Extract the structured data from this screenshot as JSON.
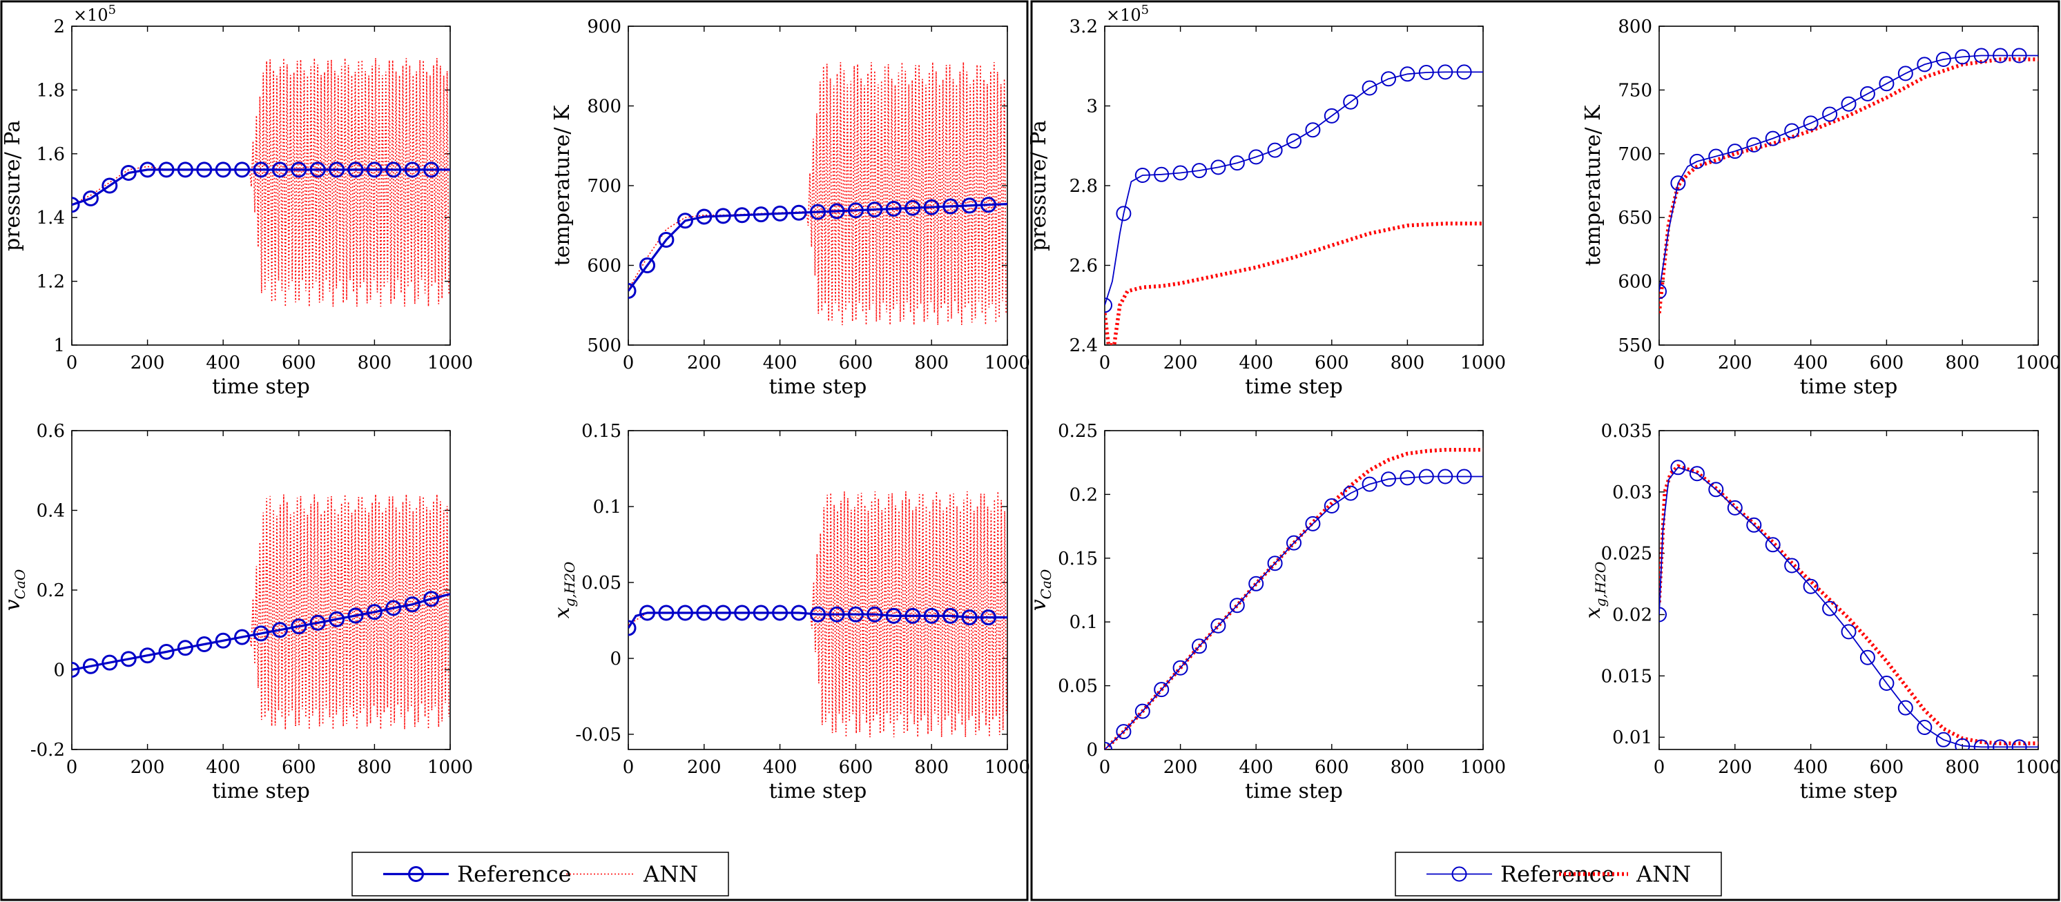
{
  "colors": {
    "reference": "#0000c8",
    "ann": "#ff0000",
    "frame": "#000000",
    "background": "#ffffff"
  },
  "legends": [
    {
      "reference_label": "Reference",
      "ann_label": "ANN",
      "reference_style": "thick",
      "ann_style": "thin-dotted"
    },
    {
      "reference_label": "Reference",
      "ann_label": "ANN",
      "reference_style": "thin",
      "ann_style": "thick-dotted"
    }
  ],
  "chart_data": [
    {
      "type": "line",
      "xlabel": "time step",
      "ylabel": "pressure/ Pa",
      "ylabel_kind": "text",
      "exponent_label": "×10^5",
      "xlim": [
        0,
        1000
      ],
      "ylim": [
        1,
        2
      ],
      "xticks": [
        0,
        200,
        400,
        600,
        800,
        1000
      ],
      "yticks": [
        1,
        1.2,
        1.4,
        1.6,
        1.8,
        2
      ],
      "ytick_labels": [
        "1",
        "1.2",
        "1.4",
        "1.6",
        "1.8",
        "2"
      ],
      "series": [
        {
          "name": "Reference",
          "style": "thick",
          "x": [
            0,
            50,
            100,
            150,
            200,
            250,
            300,
            350,
            400,
            450,
            500,
            550,
            600,
            650,
            700,
            750,
            800,
            850,
            900,
            950,
            1000
          ],
          "y": [
            1.44,
            1.46,
            1.5,
            1.54,
            1.55,
            1.55,
            1.55,
            1.55,
            1.55,
            1.55,
            1.55,
            1.55,
            1.55,
            1.55,
            1.55,
            1.55,
            1.55,
            1.55,
            1.55,
            1.55,
            1.55
          ]
        },
        {
          "name": "ANN",
          "style": "thin-dotted",
          "trend": "follows reference until ~450 then oscillates",
          "x": [
            0,
            50,
            100,
            150,
            200,
            250,
            300,
            350,
            400,
            450,
            1000
          ],
          "y": [
            1.44,
            1.47,
            1.51,
            1.55,
            1.56,
            1.55,
            1.55,
            1.55,
            1.55,
            1.55,
            1.55
          ],
          "oscillation": {
            "start": 470,
            "low": 1.12,
            "high": 1.9
          }
        }
      ]
    },
    {
      "type": "line",
      "xlabel": "time step",
      "ylabel": "temperature/ K",
      "ylabel_kind": "text",
      "xlim": [
        0,
        1000
      ],
      "ylim": [
        500,
        900
      ],
      "xticks": [
        0,
        200,
        400,
        600,
        800,
        1000
      ],
      "yticks": [
        500,
        600,
        700,
        800,
        900
      ],
      "ytick_labels": [
        "500",
        "600",
        "700",
        "800",
        "900"
      ],
      "series": [
        {
          "name": "Reference",
          "style": "thick",
          "x": [
            0,
            50,
            100,
            150,
            200,
            250,
            300,
            350,
            400,
            450,
            500,
            550,
            600,
            650,
            700,
            750,
            800,
            850,
            900,
            950,
            1000
          ],
          "y": [
            568,
            600,
            632,
            656,
            661,
            662,
            663,
            664,
            665,
            666,
            667,
            668,
            669,
            670,
            671,
            672,
            673,
            674,
            675,
            676,
            677
          ]
        },
        {
          "name": "ANN",
          "style": "thin-dotted",
          "trend": "follows reference until ~460 then oscillates",
          "x": [
            0,
            50,
            100,
            150,
            200,
            250,
            300,
            350,
            400,
            450,
            1000
          ],
          "y": [
            570,
            610,
            645,
            660,
            663,
            663,
            664,
            665,
            666,
            667,
            677
          ],
          "oscillation": {
            "start": 470,
            "low": 525,
            "high": 855
          }
        }
      ]
    },
    {
      "type": "line",
      "xlabel": "time step",
      "ylabel": "v_CaO",
      "ylabel_kind": "math",
      "ylabel_base": "v",
      "ylabel_sub": "CaO",
      "xlim": [
        0,
        1000
      ],
      "ylim": [
        -0.2,
        0.6
      ],
      "xticks": [
        0,
        200,
        400,
        600,
        800,
        1000
      ],
      "yticks": [
        -0.2,
        0,
        0.2,
        0.4,
        0.6
      ],
      "ytick_labels": [
        "-0.2",
        "0",
        "0.2",
        "0.4",
        "0.6"
      ],
      "series": [
        {
          "name": "Reference",
          "style": "thick",
          "x": [
            0,
            50,
            100,
            150,
            200,
            250,
            300,
            350,
            400,
            450,
            500,
            550,
            600,
            650,
            700,
            750,
            800,
            850,
            900,
            950,
            1000
          ],
          "y": [
            0,
            0.009,
            0.018,
            0.027,
            0.036,
            0.045,
            0.055,
            0.064,
            0.073,
            0.082,
            0.091,
            0.1,
            0.109,
            0.118,
            0.127,
            0.136,
            0.145,
            0.155,
            0.164,
            0.178,
            0.19
          ]
        },
        {
          "name": "ANN",
          "style": "thin-dotted",
          "trend": "follows reference until ~460 then oscillates",
          "x": [
            0,
            100,
            200,
            300,
            400,
            450,
            1000
          ],
          "y": [
            0,
            0.018,
            0.036,
            0.055,
            0.073,
            0.082,
            0.19
          ],
          "oscillation": {
            "start": 470,
            "low": -0.15,
            "high": 0.44
          }
        }
      ]
    },
    {
      "type": "line",
      "xlabel": "time step",
      "ylabel": "x_g,H2O",
      "ylabel_kind": "math",
      "ylabel_base": "x",
      "ylabel_sub": "g,H2O",
      "xlim": [
        0,
        1000
      ],
      "ylim": [
        -0.06,
        0.15
      ],
      "xticks": [
        0,
        200,
        400,
        600,
        800,
        1000
      ],
      "yticks": [
        -0.05,
        0,
        0.05,
        0.1,
        0.15
      ],
      "ytick_labels": [
        "-0.05",
        "0",
        "0.05",
        "0.1",
        "0.15"
      ],
      "series": [
        {
          "name": "Reference",
          "style": "thick",
          "x": [
            0,
            20,
            50,
            100,
            150,
            200,
            250,
            300,
            350,
            400,
            450,
            500,
            550,
            600,
            650,
            700,
            750,
            800,
            850,
            900,
            950,
            1000
          ],
          "y": [
            0.02,
            0.028,
            0.03,
            0.03,
            0.03,
            0.03,
            0.03,
            0.03,
            0.03,
            0.03,
            0.03,
            0.029,
            0.029,
            0.029,
            0.029,
            0.028,
            0.028,
            0.028,
            0.028,
            0.027,
            0.027,
            0.027
          ]
        },
        {
          "name": "ANN",
          "style": "thin-dotted",
          "trend": "follows reference until ~470 then oscillates",
          "x": [
            0,
            50,
            100,
            200,
            300,
            400,
            450,
            1000
          ],
          "y": [
            0.022,
            0.03,
            0.03,
            0.03,
            0.03,
            0.03,
            0.03,
            0.027
          ],
          "oscillation": {
            "start": 480,
            "low": -0.052,
            "high": 0.11
          }
        }
      ]
    },
    {
      "type": "line",
      "xlabel": "time step",
      "ylabel": "pressure/ Pa",
      "ylabel_kind": "text",
      "exponent_label": "×10^5",
      "xlim": [
        0,
        1000
      ],
      "ylim": [
        2.4,
        3.2
      ],
      "xticks": [
        0,
        200,
        400,
        600,
        800,
        1000
      ],
      "yticks": [
        2.4,
        2.6,
        2.8,
        3,
        3.2
      ],
      "ytick_labels": [
        "2.4",
        "2.6",
        "2.8",
        "3",
        "3.2"
      ],
      "series": [
        {
          "name": "Reference",
          "style": "thin",
          "x": [
            0,
            20,
            40,
            50,
            70,
            100,
            150,
            200,
            250,
            300,
            350,
            400,
            450,
            500,
            550,
            600,
            650,
            700,
            750,
            800,
            850,
            900,
            950,
            1000
          ],
          "y": [
            2.5,
            2.56,
            2.68,
            2.73,
            2.81,
            2.826,
            2.828,
            2.832,
            2.838,
            2.846,
            2.857,
            2.872,
            2.889,
            2.912,
            2.94,
            2.975,
            3.01,
            3.045,
            3.068,
            3.08,
            3.084,
            3.085,
            3.085,
            3.085
          ]
        },
        {
          "name": "ANN",
          "style": "thick-dotted",
          "x": [
            0,
            10,
            25,
            40,
            60,
            100,
            150,
            200,
            300,
            400,
            500,
            600,
            700,
            800,
            900,
            1000
          ],
          "y": [
            2.48,
            2.4,
            2.4,
            2.5,
            2.535,
            2.545,
            2.548,
            2.555,
            2.575,
            2.595,
            2.62,
            2.65,
            2.68,
            2.7,
            2.705,
            2.705
          ]
        }
      ]
    },
    {
      "type": "line",
      "xlabel": "time step",
      "ylabel": "temperature/ K",
      "ylabel_kind": "text",
      "xlim": [
        0,
        1000
      ],
      "ylim": [
        550,
        800
      ],
      "xticks": [
        0,
        200,
        400,
        600,
        800,
        1000
      ],
      "yticks": [
        550,
        600,
        650,
        700,
        750,
        800
      ],
      "ytick_labels": [
        "550",
        "600",
        "650",
        "700",
        "750",
        "800"
      ],
      "series": [
        {
          "name": "Reference",
          "style": "thin",
          "x": [
            0,
            25,
            50,
            75,
            100,
            150,
            200,
            250,
            300,
            350,
            400,
            450,
            500,
            550,
            600,
            650,
            700,
            750,
            800,
            850,
            900,
            950,
            1000
          ],
          "y": [
            592,
            640,
            677,
            690,
            694,
            698,
            702,
            707,
            712,
            718,
            724,
            731,
            739,
            747,
            755,
            763,
            770,
            774,
            776,
            777,
            777,
            777,
            777
          ]
        },
        {
          "name": "ANN",
          "style": "thick-dotted",
          "x": [
            0,
            25,
            50,
            75,
            100,
            200,
            300,
            400,
            500,
            600,
            700,
            800,
            900,
            1000
          ],
          "y": [
            575,
            645,
            675,
            684,
            690,
            700,
            708,
            718,
            730,
            744,
            760,
            770,
            774,
            774
          ]
        }
      ]
    },
    {
      "type": "line",
      "xlabel": "time step",
      "ylabel": "v_CaO",
      "ylabel_kind": "math",
      "ylabel_base": "v",
      "ylabel_sub": "CaO",
      "xlim": [
        0,
        1000
      ],
      "ylim": [
        0,
        0.25
      ],
      "xticks": [
        0,
        200,
        400,
        600,
        800,
        1000
      ],
      "yticks": [
        0,
        0.05,
        0.1,
        0.15,
        0.2,
        0.25
      ],
      "ytick_labels": [
        "0",
        "0.05",
        "0.1",
        "0.15",
        "0.2",
        "0.25"
      ],
      "series": [
        {
          "name": "Reference",
          "style": "thin",
          "x": [
            0,
            50,
            100,
            150,
            200,
            250,
            300,
            350,
            400,
            450,
            500,
            550,
            600,
            650,
            700,
            750,
            800,
            850,
            900,
            950,
            1000
          ],
          "y": [
            0,
            0.014,
            0.03,
            0.047,
            0.064,
            0.081,
            0.097,
            0.113,
            0.13,
            0.146,
            0.162,
            0.177,
            0.191,
            0.201,
            0.208,
            0.212,
            0.213,
            0.214,
            0.214,
            0.214,
            0.214
          ]
        },
        {
          "name": "ANN",
          "style": "thick-dotted",
          "x": [
            0,
            50,
            100,
            150,
            200,
            250,
            300,
            350,
            400,
            450,
            500,
            550,
            600,
            650,
            700,
            750,
            800,
            850,
            900,
            950,
            1000
          ],
          "y": [
            0,
            0.014,
            0.03,
            0.047,
            0.064,
            0.081,
            0.097,
            0.113,
            0.13,
            0.146,
            0.162,
            0.178,
            0.193,
            0.207,
            0.219,
            0.227,
            0.232,
            0.234,
            0.235,
            0.235,
            0.235
          ]
        }
      ]
    },
    {
      "type": "line",
      "xlabel": "time step",
      "ylabel": "x_g,H2O",
      "ylabel_kind": "math",
      "ylabel_base": "x",
      "ylabel_sub": "g,H2O",
      "xlim": [
        0,
        1000
      ],
      "ylim": [
        0.009,
        0.035
      ],
      "xticks": [
        0,
        200,
        400,
        600,
        800,
        1000
      ],
      "yticks": [
        0.01,
        0.015,
        0.02,
        0.025,
        0.03,
        0.035
      ],
      "ytick_labels": [
        "0.01",
        "0.015",
        "0.02",
        "0.025",
        "0.03",
        "0.035"
      ],
      "series": [
        {
          "name": "Reference",
          "style": "thin",
          "x": [
            0,
            10,
            25,
            50,
            100,
            150,
            200,
            250,
            300,
            350,
            400,
            450,
            500,
            550,
            600,
            650,
            700,
            750,
            800,
            850,
            900,
            950,
            1000
          ],
          "y": [
            0.02,
            0.027,
            0.031,
            0.032,
            0.0315,
            0.0302,
            0.0287,
            0.0273,
            0.0257,
            0.024,
            0.0223,
            0.0205,
            0.0186,
            0.0165,
            0.0144,
            0.0124,
            0.0108,
            0.0098,
            0.0093,
            0.0092,
            0.0092,
            0.0092,
            0.0092
          ]
        },
        {
          "name": "ANN",
          "style": "thick-dotted",
          "x": [
            0,
            15,
            30,
            50,
            100,
            150,
            200,
            250,
            300,
            350,
            400,
            450,
            500,
            550,
            600,
            650,
            700,
            750,
            800,
            850,
            900,
            950,
            1000
          ],
          "y": [
            0.021,
            0.03,
            0.0315,
            0.0321,
            0.0316,
            0.0303,
            0.0288,
            0.0274,
            0.0259,
            0.0242,
            0.0227,
            0.0212,
            0.0197,
            0.018,
            0.0162,
            0.0142,
            0.0122,
            0.0107,
            0.0099,
            0.0096,
            0.0095,
            0.0095,
            0.0095
          ]
        }
      ]
    }
  ]
}
